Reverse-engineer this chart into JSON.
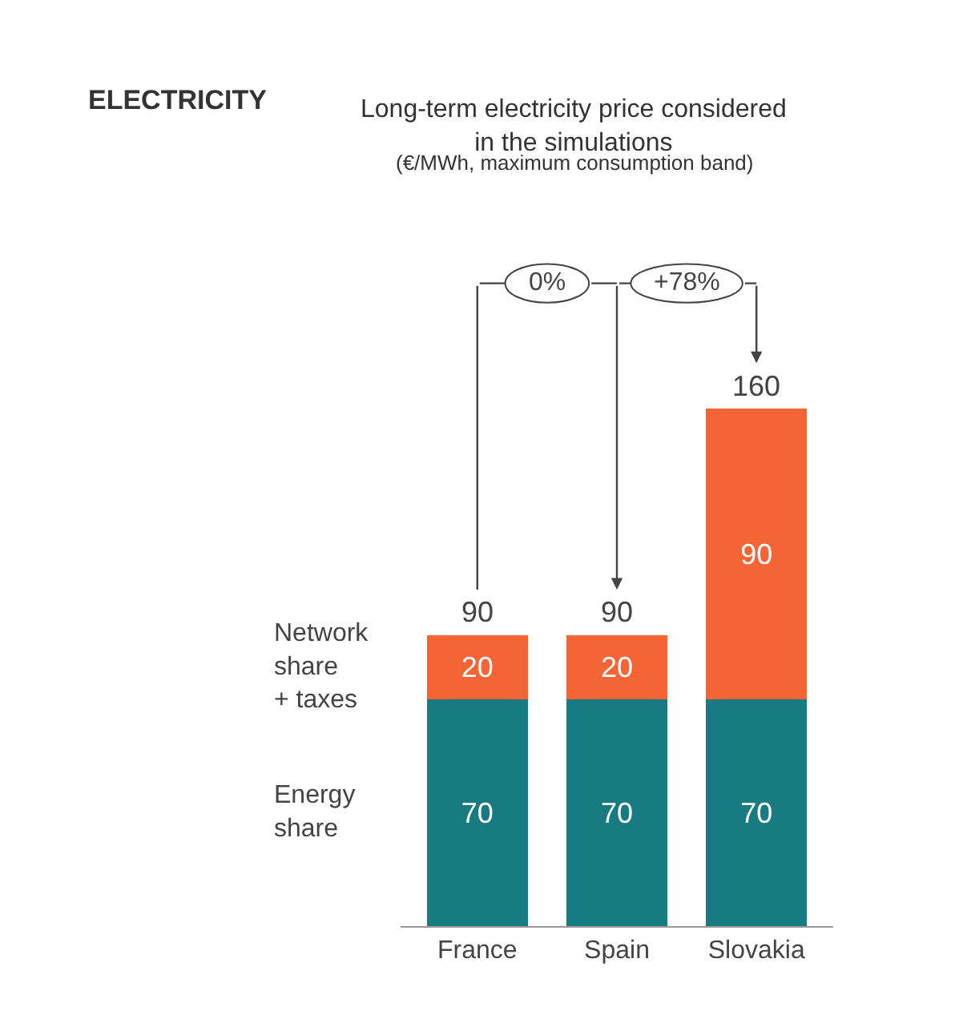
{
  "chart_data": {
    "type": "bar",
    "stacked": true,
    "title": "ELECTRICITY",
    "subtitle": "Long-term electricity price considered in the simulations",
    "annotations": [
      "(€/MWh, maximum consumption band)",
      "0%",
      "+78%"
    ],
    "categories": [
      "France",
      "Spain",
      "Slovakia"
    ],
    "series": [
      {
        "name": "Energy share",
        "color": "#177b81",
        "values": [
          70,
          70,
          70
        ]
      },
      {
        "name": "Network share + taxes",
        "color": "#f46434",
        "values": [
          20,
          20,
          90
        ]
      }
    ],
    "totals": [
      "90",
      "90",
      "160"
    ],
    "data_labels": true,
    "legend": false
  }
}
